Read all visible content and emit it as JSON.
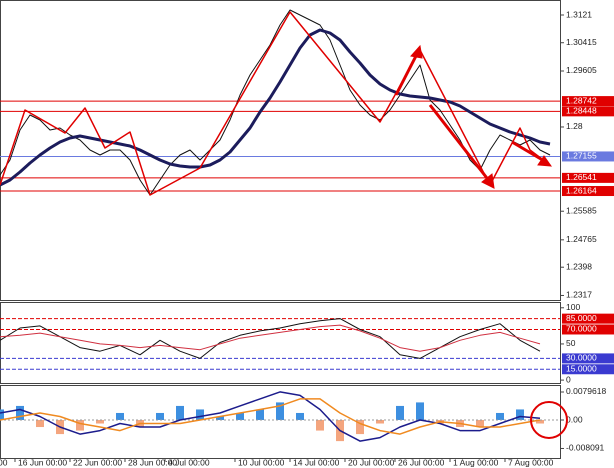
{
  "chart_data": [
    {
      "type": "line",
      "xlim": [
        0,
        112
      ],
      "ylim": [
        1.2304,
        1.3164
      ],
      "yticks": [
        1.3121,
        1.30415,
        1.29605,
        1.28,
        1.25585,
        1.24765,
        1.2398,
        1.2317
      ],
      "xticks": [
        {
          "value": -1,
          "label": "00"
        },
        {
          "value": 3,
          "label": "16 Jun 00:00"
        },
        {
          "value": 14,
          "label": "22 Jun 00:00"
        },
        {
          "value": 25,
          "label": "28 Jun 00:00"
        },
        {
          "value": 33,
          "label": "4 Jul 00:00"
        },
        {
          "value": 47,
          "label": "10 Jul 00:00"
        },
        {
          "value": 58,
          "label": "14 Jul 00:00"
        },
        {
          "value": 69,
          "label": "20 Jul 00:00"
        },
        {
          "value": 79,
          "label": "26 Jul 00:00"
        },
        {
          "value": 90,
          "label": "1 Aug 00:00"
        },
        {
          "value": 101,
          "label": "7 Aug 00:00"
        }
      ],
      "levels": [
        {
          "value": 1.28742,
          "color": "#e00000"
        },
        {
          "value": 1.28448,
          "color": "#e00000"
        },
        {
          "value": 1.27155,
          "color": "#6a7ae0"
        },
        {
          "value": 1.26541,
          "color": "#e00000"
        },
        {
          "value": 1.26164,
          "color": "#e00000"
        }
      ],
      "x": [
        0,
        2,
        4,
        6,
        8,
        10,
        12,
        14,
        16,
        18,
        20,
        22,
        24,
        26,
        28,
        30,
        32,
        34,
        36,
        38,
        40,
        42,
        44,
        46,
        48,
        50,
        52,
        54,
        56,
        58,
        60,
        62,
        64,
        66,
        68,
        70,
        72,
        74,
        76,
        78,
        80,
        82,
        84,
        86,
        88,
        90,
        92,
        94,
        96,
        98,
        100,
        102,
        104,
        106,
        108,
        110
      ],
      "series": [
        {
          "color": "#111111",
          "width": 1,
          "values": [
            1.26624,
            1.27054,
            1.27914,
            1.28344,
            1.28201,
            1.27914,
            1.27972,
            1.27771,
            1.27628,
            1.27341,
            1.27198,
            1.27341,
            1.27341,
            1.27054,
            1.26481,
            1.26051,
            1.26481,
            1.26911,
            1.27198,
            1.27341,
            1.27054,
            1.27341,
            1.27628,
            1.28201,
            1.28917,
            1.2949,
            1.2992,
            1.3035,
            1.30923,
            1.31353,
            1.3121,
            1.31067,
            1.30923,
            1.30494,
            1.29777,
            1.29061,
            1.28631,
            1.28344,
            1.28201,
            1.28487,
            1.28917,
            1.29347,
            1.29777,
            1.28774,
            1.28487,
            1.28057,
            1.27628,
            1.27054,
            1.26768,
            1.27341,
            1.27771,
            1.27628,
            1.27484,
            1.27628,
            1.27341,
            1.27198
          ]
        },
        {
          "color": "#1c1c5c",
          "width": 3,
          "values": [
            1.26338,
            1.26481,
            1.2671,
            1.26968,
            1.27198,
            1.27398,
            1.2757,
            1.27685,
            1.27742,
            1.27685,
            1.27628,
            1.2757,
            1.27513,
            1.27456,
            1.27341,
            1.27198,
            1.27054,
            1.2694,
            1.26882,
            1.26854,
            1.26854,
            1.26911,
            1.27054,
            1.27284,
            1.27628,
            1.27972,
            1.2843,
            1.28831,
            1.2929,
            1.29777,
            1.30264,
            1.30637,
            1.3078,
            1.30694,
            1.30494,
            1.3015,
            1.29834,
            1.2949,
            1.29233,
            1.29061,
            1.28946,
            1.28889,
            1.2886,
            1.28831,
            1.28774,
            1.28717,
            1.28602,
            1.2843,
            1.28258,
            1.28086,
            1.27972,
            1.27857,
            1.27771,
            1.27685,
            1.2757,
            1.27513
          ]
        },
        {
          "color": "#e00000",
          "width": 1.5,
          "x": [
            0,
            5,
            13,
            17,
            21,
            26,
            30,
            40,
            58,
            76,
            84,
            98,
            104,
            106,
            110
          ],
          "values": [
            1.26338,
            1.28487,
            1.27828,
            1.28545,
            1.27398,
            1.27857,
            1.26051,
            1.26825,
            1.31296,
            1.28143,
            1.30207,
            1.26338,
            1.27972,
            1.27341,
            1.26911
          ]
        }
      ]
    },
    {
      "type": "line",
      "xlim": [
        0,
        112
      ],
      "ylim": [
        -4,
        108
      ],
      "yticks": [
        100,
        50,
        0
      ],
      "levels": [
        {
          "value": 85,
          "label": "85.0000",
          "color": "#e00000"
        },
        {
          "value": 70,
          "label": "70.0000",
          "color": "#e00000"
        },
        {
          "value": 30,
          "label": "30.0000",
          "color": "#3a3ad0"
        },
        {
          "value": 15,
          "label": "15.0000",
          "color": "#3a3ad0"
        }
      ],
      "x": [
        0,
        4,
        8,
        12,
        16,
        20,
        24,
        28,
        32,
        36,
        40,
        44,
        48,
        52,
        56,
        60,
        64,
        68,
        72,
        76,
        80,
        84,
        88,
        92,
        96,
        100,
        104,
        108
      ],
      "series": [
        {
          "color": "#111111",
          "width": 1,
          "values": [
            55,
            72,
            75,
            60,
            45,
            40,
            48,
            35,
            55,
            40,
            30,
            52,
            62,
            68,
            72,
            78,
            82,
            85,
            70,
            60,
            35,
            30,
            45,
            60,
            70,
            78,
            55,
            40
          ]
        },
        {
          "color": "#d03040",
          "width": 1,
          "values": [
            60,
            62,
            65,
            60,
            55,
            50,
            48,
            45,
            48,
            45,
            42,
            50,
            58,
            62,
            66,
            70,
            74,
            76,
            68,
            58,
            45,
            40,
            45,
            55,
            62,
            66,
            58,
            50
          ]
        }
      ]
    },
    {
      "type": "bar",
      "xlim": [
        0,
        112
      ],
      "ylim": [
        -0.0108,
        0.00995
      ],
      "yticks": [
        0.0079618,
        {
          "value": 0,
          "label": "0.00"
        },
        -0.008091
      ],
      "color": "#3d8fe0",
      "negative_color": "#f4a57e",
      "x": [
        0,
        4,
        8,
        12,
        16,
        20,
        24,
        28,
        32,
        36,
        40,
        44,
        48,
        52,
        56,
        60,
        64,
        68,
        72,
        76,
        80,
        84,
        88,
        92,
        96,
        100,
        104,
        108
      ],
      "values": [
        0.003,
        0.004,
        -0.002,
        -0.004,
        -0.003,
        -0.001,
        0.002,
        -0.002,
        0.002,
        0.004,
        0.003,
        0.001,
        0.002,
        0.003,
        0.005,
        0.002,
        -0.003,
        -0.006,
        -0.004,
        -0.001,
        0.004,
        0.005,
        -0.001,
        -0.002,
        -0.002,
        0.002,
        0.003,
        -0.001
      ],
      "series": [
        {
          "color": "#1c1c8c",
          "width": 1.5,
          "values": [
            0.002,
            0.003,
            0.001,
            -0.002,
            -0.004,
            -0.003,
            -0.001,
            -0.002,
            -0.002,
            0,
            0.001,
            0.002,
            0.004,
            0.006,
            0.008,
            0.007,
            0.003,
            -0.003,
            -0.006,
            -0.005,
            -0.002,
            0,
            -0.001,
            -0.003,
            -0.003,
            -0.001,
            0.001,
            0.0005
          ]
        },
        {
          "color": "#f08a20",
          "width": 1.5,
          "values": [
            0,
            0.001,
            0.002,
            0.001,
            -0.001,
            -0.002,
            -0.003,
            -0.001,
            -0.001,
            -0.001,
            0,
            0.001,
            0.002,
            0.003,
            0.004,
            0.006,
            0.006,
            0.002,
            -0.001,
            -0.003,
            -0.004,
            -0.002,
            -0.0005,
            -0.001,
            -0.002,
            -0.002,
            -0.001,
            0
          ]
        }
      ]
    }
  ]
}
